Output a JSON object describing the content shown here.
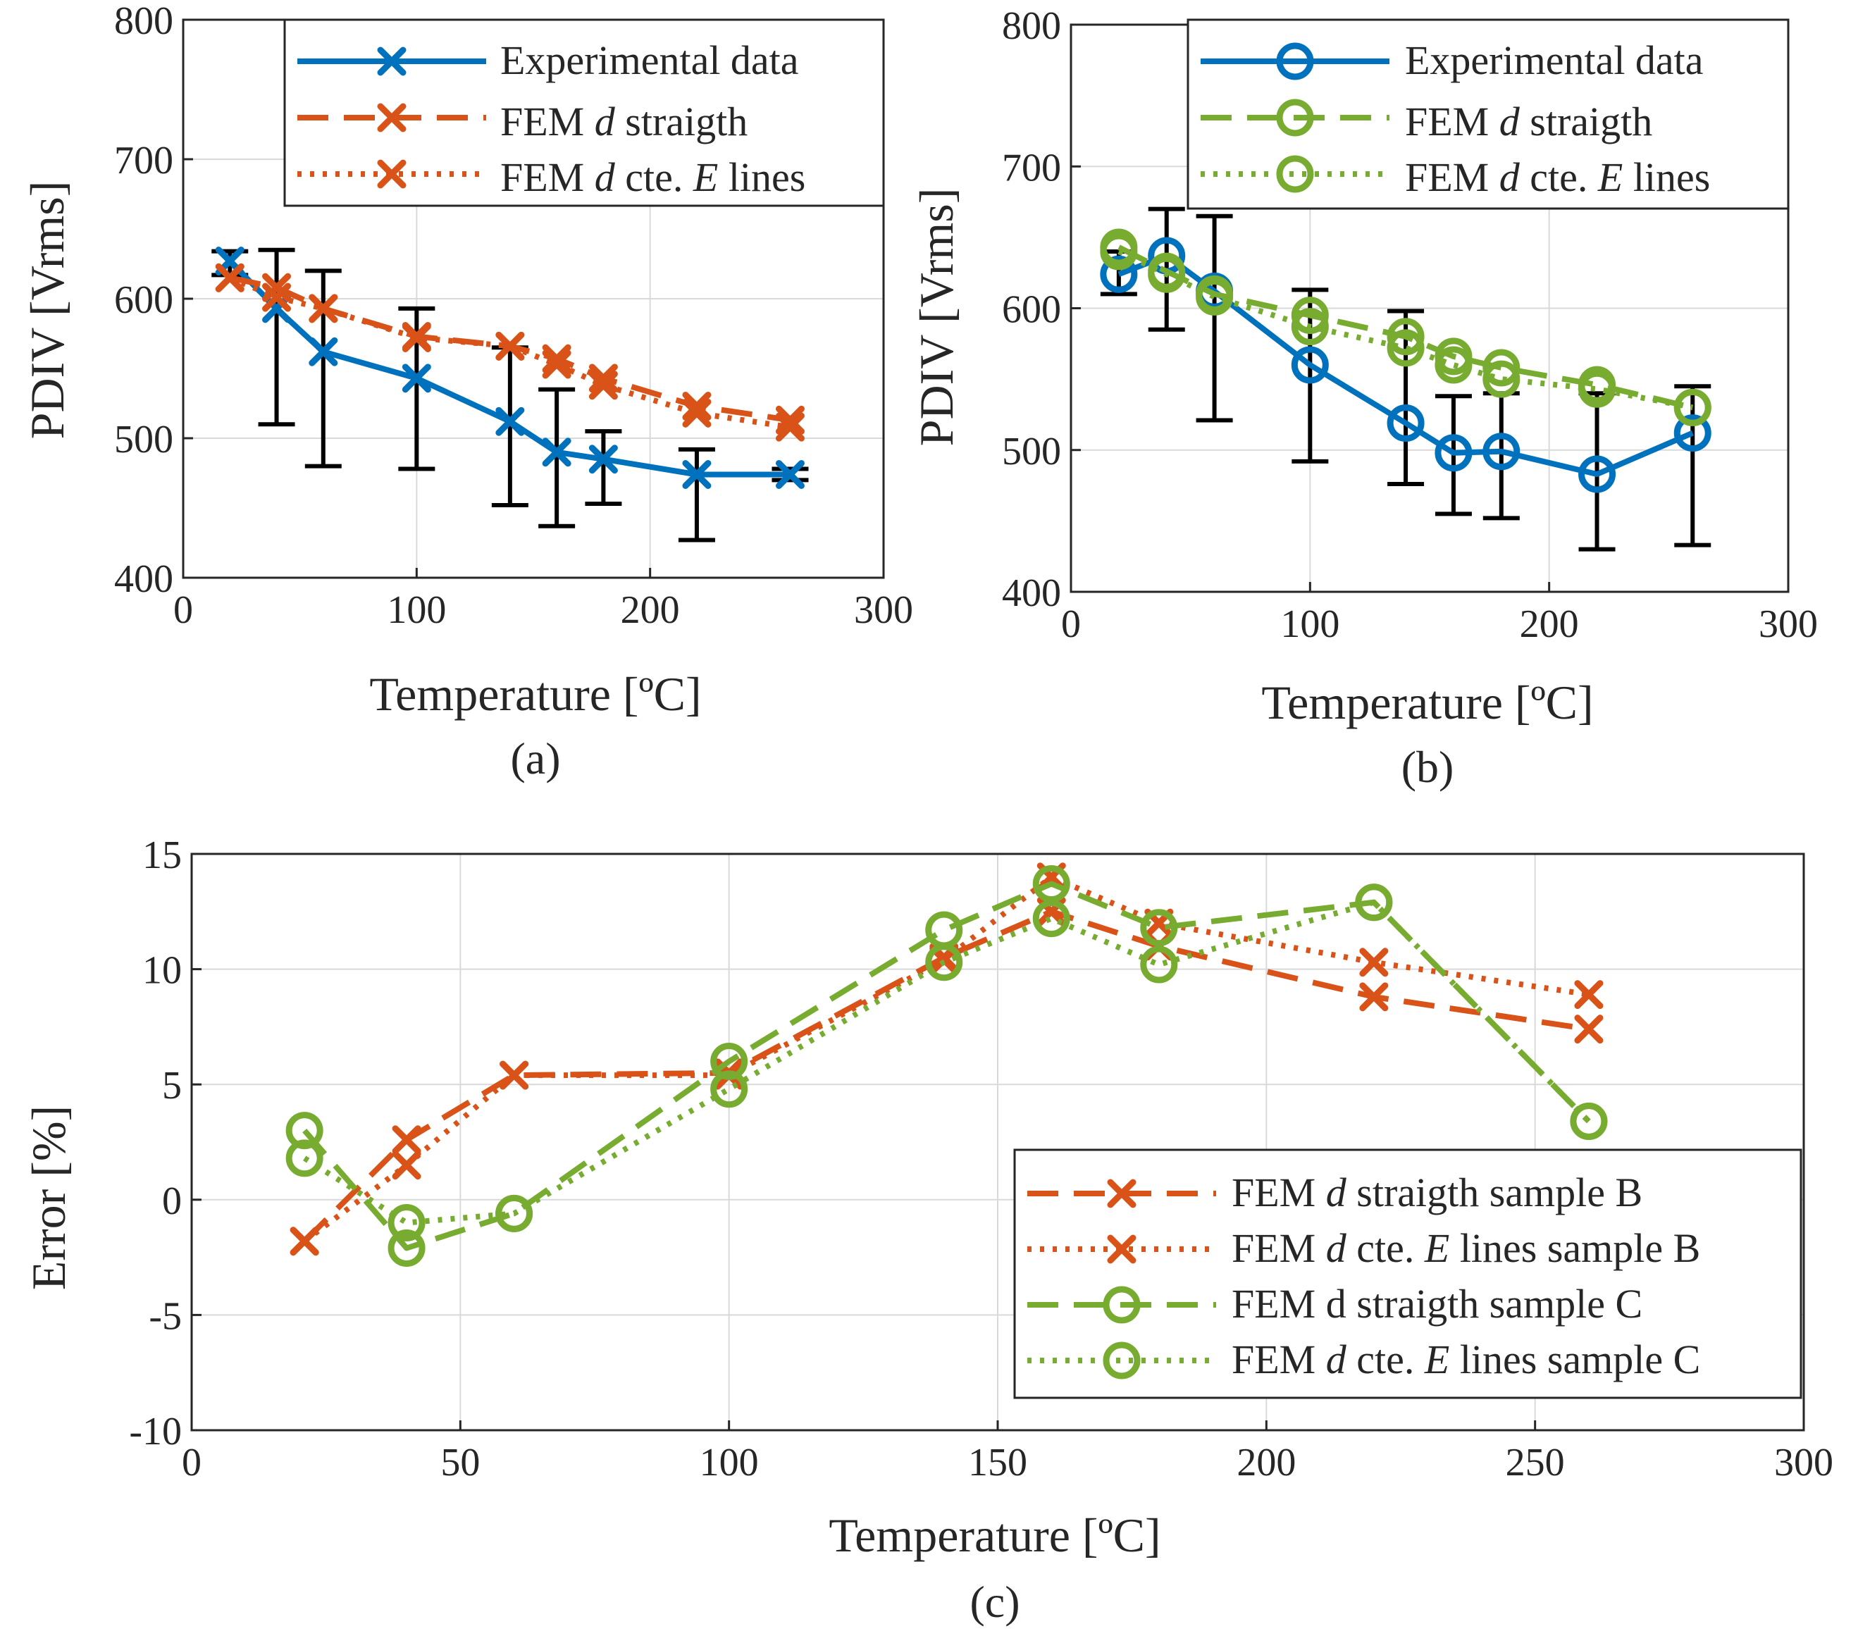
{
  "colors": {
    "experimental": "#0072BD",
    "femB": "#D95319",
    "femC": "#77AC30",
    "errorbar": "#000000",
    "grid": "#d9d9d9",
    "axis": "#262626"
  },
  "chart_data": [
    {
      "id": "a",
      "type": "line",
      "caption": "(a)",
      "xlabel": "Temperature [ºC]",
      "ylabel": "PDIV [Vrms]",
      "xlim": [
        0,
        300
      ],
      "ylim": [
        400,
        800
      ],
      "xticks": [
        "0",
        "100",
        "200",
        "300"
      ],
      "yticks": [
        "400",
        "500",
        "600",
        "700",
        "800"
      ],
      "grid": true,
      "legend_position": "top-right",
      "series": [
        {
          "name": "Experimental data",
          "color": "#0072BD",
          "dash": "solid",
          "marker": "x",
          "x": [
            20,
            40,
            60,
            100,
            140,
            160,
            180,
            220,
            260
          ],
          "y": [
            627,
            593,
            562,
            543,
            512,
            490,
            485,
            474,
            474
          ],
          "err_low": [
            617,
            510,
            480,
            478,
            452,
            437,
            453,
            427,
            470
          ],
          "err_high": [
            634,
            635,
            620,
            593,
            565,
            535,
            505,
            492,
            478
          ]
        },
        {
          "name": "FEM d straigth",
          "name_prefix": "FEM ",
          "name_italic": "d",
          "name_suffix": " straigth",
          "color": "#D95319",
          "dash": "dashed",
          "marker": "x",
          "x": [
            20,
            40,
            60,
            100,
            140,
            160,
            180,
            220,
            260
          ],
          "y": [
            615,
            608,
            593,
            573,
            566,
            557,
            543,
            523,
            513
          ]
        },
        {
          "name": "FEM d cte. E lines",
          "name_prefix": "FEM ",
          "name_italic": "d",
          "name_mid": " cte. ",
          "name_italic2": "E",
          "name_suffix": " lines",
          "color": "#D95319",
          "dash": "dotted",
          "marker": "x",
          "x": [
            20,
            40,
            60,
            100,
            140,
            160,
            180,
            220,
            260
          ],
          "y": [
            615,
            601,
            593,
            572,
            566,
            553,
            538,
            518,
            508
          ]
        }
      ]
    },
    {
      "id": "b",
      "type": "line",
      "caption": "(b)",
      "xlabel": "Temperature [ºC]",
      "ylabel": "PDIV [Vrms]",
      "xlim": [
        0,
        300
      ],
      "ylim": [
        400,
        800
      ],
      "xticks": [
        "0",
        "100",
        "200",
        "300"
      ],
      "yticks": [
        "400",
        "500",
        "600",
        "700",
        "800"
      ],
      "grid": true,
      "legend_position": "top-right",
      "series": [
        {
          "name": "Experimental data",
          "color": "#0072BD",
          "dash": "solid",
          "marker": "o",
          "x": [
            20,
            40,
            60,
            100,
            140,
            160,
            180,
            220,
            260
          ],
          "y": [
            624,
            637,
            612,
            560,
            519,
            498,
            499,
            483,
            512
          ],
          "err_low": [
            610,
            585,
            521,
            492,
            476,
            455,
            452,
            430,
            433
          ],
          "err_high": [
            640,
            670,
            665,
            613,
            598,
            538,
            540,
            540,
            545
          ]
        },
        {
          "name": "FEM d straigth",
          "name_prefix": "FEM ",
          "name_italic": "d",
          "name_suffix": " straigth",
          "color": "#77AC30",
          "dash": "dashed",
          "marker": "o",
          "x": [
            20,
            40,
            60,
            100,
            140,
            160,
            180,
            220,
            260
          ],
          "y": [
            643,
            626,
            610,
            595,
            580,
            566,
            558,
            546,
            530
          ]
        },
        {
          "name": "FEM d cte. E lines",
          "name_prefix": "FEM ",
          "name_italic": "d",
          "name_mid": " cte. ",
          "name_italic2": "E",
          "name_suffix": " lines",
          "color": "#77AC30",
          "dash": "dotted",
          "marker": "o",
          "x": [
            20,
            40,
            60,
            100,
            140,
            160,
            180,
            220,
            260
          ],
          "y": [
            640,
            624,
            608,
            587,
            572,
            560,
            550,
            543,
            530
          ]
        }
      ]
    },
    {
      "id": "c",
      "type": "line",
      "caption": "(c)",
      "xlabel": "Temperature [ºC]",
      "ylabel": "Error [%]",
      "xlim": [
        0,
        300
      ],
      "ylim": [
        -10,
        15
      ],
      "xticks": [
        "0",
        "50",
        "100",
        "150",
        "200",
        "250",
        "300"
      ],
      "yticks": [
        "-10",
        "-5",
        "0",
        "5",
        "10",
        "15"
      ],
      "grid": true,
      "legend_position": "bottom-right",
      "series": [
        {
          "name": "FEM d straigth sample B",
          "name_prefix": "FEM ",
          "name_italic": "d",
          "name_suffix": " straigth sample B",
          "color": "#D95319",
          "dash": "dashed",
          "marker": "x",
          "x": [
            21,
            40,
            60,
            100,
            140,
            160,
            180,
            220,
            260
          ],
          "y": [
            -1.8,
            2.6,
            5.4,
            5.5,
            10.5,
            12.5,
            11.0,
            8.8,
            7.4
          ]
        },
        {
          "name": "FEM d cte. E lines sample B",
          "name_prefix": "FEM ",
          "name_italic": "d",
          "name_mid": " cte. ",
          "name_italic2": "E",
          "name_suffix": " lines sample B",
          "color": "#D95319",
          "dash": "dotted",
          "marker": "x",
          "x": [
            21,
            40,
            60,
            100,
            140,
            160,
            180,
            220,
            260
          ],
          "y": [
            -1.8,
            1.5,
            5.4,
            5.4,
            10.4,
            14.0,
            12.0,
            10.3,
            8.9
          ]
        },
        {
          "name": "FEM d straigth sample C",
          "color": "#77AC30",
          "dash": "dashed",
          "marker": "o",
          "x": [
            21,
            40,
            60,
            100,
            140,
            160,
            180,
            220,
            260
          ],
          "y": [
            3.0,
            -2.1,
            -0.6,
            6.0,
            11.7,
            13.7,
            11.8,
            12.9,
            3.4
          ]
        },
        {
          "name": "FEM d cte. E lines sample C",
          "name_prefix": "FEM ",
          "name_italic": "d",
          "name_mid": " cte. ",
          "name_italic2": "E",
          "name_suffix": " lines sample C",
          "color": "#77AC30",
          "dash": "dotted",
          "marker": "o",
          "x": [
            21,
            40,
            60,
            100,
            140,
            160,
            180,
            220,
            260
          ],
          "y": [
            1.8,
            -1.0,
            -0.6,
            4.8,
            10.3,
            12.2,
            10.2,
            12.9,
            3.4
          ]
        }
      ]
    }
  ]
}
